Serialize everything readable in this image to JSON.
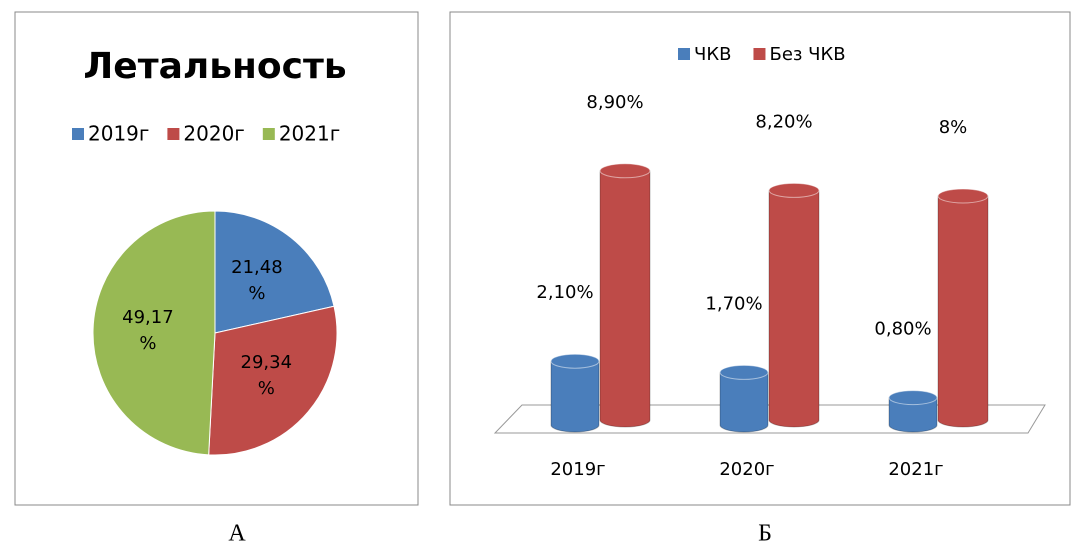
{
  "chart_data": [
    {
      "type": "pie",
      "title": "Летальность",
      "caption": "А",
      "series": [
        {
          "name": "2019г",
          "color": "#4a7ebb",
          "values": [
            21.48
          ],
          "value_labels": [
            "21,48 %"
          ]
        },
        {
          "name": "2020г",
          "color": "#be4b48",
          "values": [
            29.34
          ],
          "value_labels": [
            "29,34 %"
          ]
        },
        {
          "name": "2021г",
          "color": "#98b954",
          "values": [
            49.17
          ],
          "value_labels": [
            "49,17 %"
          ]
        }
      ]
    },
    {
      "type": "bar3d",
      "caption": "Б",
      "categories": [
        "2019г",
        "2020г",
        "2021г"
      ],
      "ylim": [
        0,
        10
      ],
      "series": [
        {
          "name": "ЧКВ",
          "color": "#4a7ebb",
          "values": [
            2.1,
            1.7,
            0.8
          ],
          "value_labels": [
            "2,10%",
            "1,70%",
            "0,80%"
          ]
        },
        {
          "name": "Без ЧКВ",
          "color": "#be4b48",
          "values": [
            8.9,
            8.2,
            8
          ],
          "value_labels": [
            "8,90%",
            "8,20%",
            "8%"
          ]
        }
      ]
    }
  ]
}
